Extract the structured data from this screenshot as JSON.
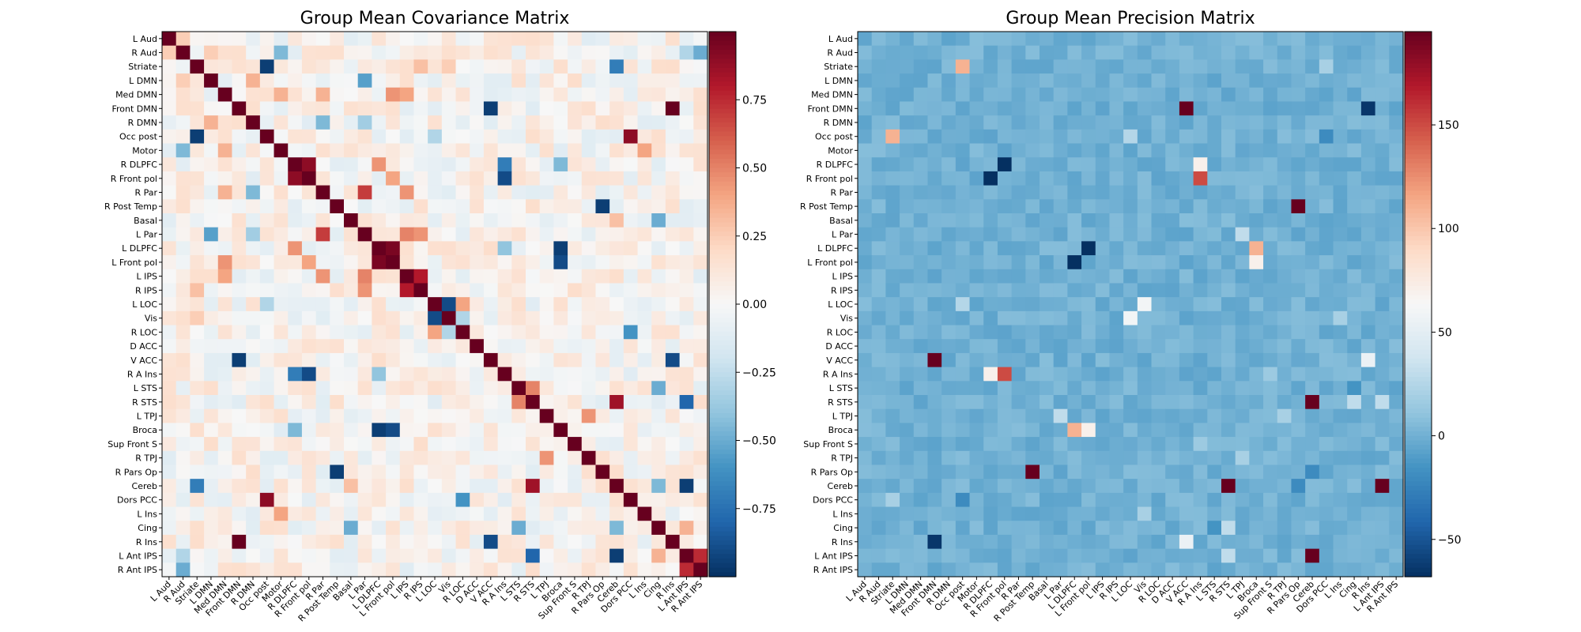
{
  "chart_data": [
    {
      "type": "heatmap",
      "title": "Group Mean Covariance Matrix",
      "colormap": "RdBu_r",
      "vmin": -1.0,
      "vmax": 1.0,
      "colorbar_ticks": [
        "0.75",
        "0.50",
        "0.25",
        "0.00",
        "−0.25",
        "−0.50",
        "−0.75"
      ],
      "colorbar_tick_values": [
        0.75,
        0.5,
        0.25,
        0.0,
        -0.25,
        -0.5,
        -0.75
      ],
      "cells": [
        {
          "x": 0,
          "y": 0,
          "v": 1.0
        },
        {
          "x": 1,
          "y": 1,
          "v": 1.0
        },
        {
          "x": 2,
          "y": 2,
          "v": 1.0
        },
        {
          "x": 3,
          "y": 3,
          "v": 1.0
        },
        {
          "x": 4,
          "y": 4,
          "v": 1.0
        },
        {
          "x": 5,
          "y": 5,
          "v": 1.0
        },
        {
          "x": 6,
          "y": 6,
          "v": 1.0
        },
        {
          "x": 7,
          "y": 7,
          "v": 1.0
        },
        {
          "x": 8,
          "y": 8,
          "v": 1.0
        },
        {
          "x": 9,
          "y": 9,
          "v": 1.0
        },
        {
          "x": 10,
          "y": 10,
          "v": 1.0
        },
        {
          "x": 11,
          "y": 11,
          "v": 1.0
        },
        {
          "x": 12,
          "y": 12,
          "v": 1.0
        },
        {
          "x": 13,
          "y": 13,
          "v": 1.0
        },
        {
          "x": 14,
          "y": 14,
          "v": 1.0
        },
        {
          "x": 15,
          "y": 15,
          "v": 1.0
        },
        {
          "x": 16,
          "y": 16,
          "v": 1.0
        },
        {
          "x": 17,
          "y": 17,
          "v": 1.0
        },
        {
          "x": 18,
          "y": 18,
          "v": 1.0
        },
        {
          "x": 19,
          "y": 19,
          "v": 1.0
        },
        {
          "x": 20,
          "y": 20,
          "v": 1.0
        },
        {
          "x": 21,
          "y": 21,
          "v": 1.0
        },
        {
          "x": 22,
          "y": 22,
          "v": 1.0
        },
        {
          "x": 23,
          "y": 23,
          "v": 1.0
        },
        {
          "x": 24,
          "y": 24,
          "v": 1.0
        },
        {
          "x": 25,
          "y": 25,
          "v": 1.0
        },
        {
          "x": 26,
          "y": 26,
          "v": 1.0
        },
        {
          "x": 27,
          "y": 27,
          "v": 1.0
        },
        {
          "x": 28,
          "y": 28,
          "v": 1.0
        },
        {
          "x": 29,
          "y": 29,
          "v": 1.0
        },
        {
          "x": 30,
          "y": 30,
          "v": 1.0
        },
        {
          "x": 31,
          "y": 31,
          "v": 1.0
        },
        {
          "x": 32,
          "y": 32,
          "v": 1.0
        },
        {
          "x": 33,
          "y": 33,
          "v": 1.0
        },
        {
          "x": 34,
          "y": 34,
          "v": 1.0
        },
        {
          "x": 35,
          "y": 35,
          "v": 1.0
        },
        {
          "x": 36,
          "y": 36,
          "v": 1.0
        },
        {
          "x": 37,
          "y": 37,
          "v": 1.0
        },
        {
          "x": 38,
          "y": 38,
          "v": 1.0
        },
        {
          "x": 0,
          "y": 1,
          "v": 0.25
        },
        {
          "x": 1,
          "y": 0,
          "v": 0.25
        },
        {
          "x": 1,
          "y": 38,
          "v": -0.5
        },
        {
          "x": 38,
          "y": 1,
          "v": -0.5
        },
        {
          "x": 1,
          "y": 37,
          "v": -0.3
        },
        {
          "x": 37,
          "y": 1,
          "v": -0.3
        },
        {
          "x": 1,
          "y": 8,
          "v": -0.45
        },
        {
          "x": 8,
          "y": 1,
          "v": -0.45
        },
        {
          "x": 1,
          "y": 3,
          "v": 0.25
        },
        {
          "x": 3,
          "y": 1,
          "v": 0.25
        },
        {
          "x": 2,
          "y": 7,
          "v": -0.95
        },
        {
          "x": 7,
          "y": 2,
          "v": -0.95
        },
        {
          "x": 2,
          "y": 32,
          "v": -0.7
        },
        {
          "x": 32,
          "y": 2,
          "v": -0.7
        },
        {
          "x": 2,
          "y": 18,
          "v": 0.3
        },
        {
          "x": 18,
          "y": 2,
          "v": 0.3
        },
        {
          "x": 2,
          "y": 20,
          "v": 0.25
        },
        {
          "x": 20,
          "y": 2,
          "v": 0.25
        },
        {
          "x": 3,
          "y": 14,
          "v": -0.55
        },
        {
          "x": 14,
          "y": 3,
          "v": -0.55
        },
        {
          "x": 3,
          "y": 6,
          "v": 0.35
        },
        {
          "x": 6,
          "y": 3,
          "v": 0.35
        },
        {
          "x": 4,
          "y": 8,
          "v": 0.35
        },
        {
          "x": 8,
          "y": 4,
          "v": 0.35
        },
        {
          "x": 4,
          "y": 16,
          "v": 0.45
        },
        {
          "x": 16,
          "y": 4,
          "v": 0.45
        },
        {
          "x": 4,
          "y": 17,
          "v": 0.4
        },
        {
          "x": 17,
          "y": 4,
          "v": 0.4
        },
        {
          "x": 4,
          "y": 11,
          "v": 0.35
        },
        {
          "x": 11,
          "y": 4,
          "v": 0.35
        },
        {
          "x": 5,
          "y": 23,
          "v": -0.95
        },
        {
          "x": 23,
          "y": 5,
          "v": -0.95
        },
        {
          "x": 5,
          "y": 36,
          "v": 1.0
        },
        {
          "x": 36,
          "y": 5,
          "v": 1.0
        },
        {
          "x": 6,
          "y": 11,
          "v": -0.45
        },
        {
          "x": 11,
          "y": 6,
          "v": -0.45
        },
        {
          "x": 6,
          "y": 14,
          "v": -0.35
        },
        {
          "x": 14,
          "y": 6,
          "v": -0.35
        },
        {
          "x": 7,
          "y": 33,
          "v": 0.9
        },
        {
          "x": 33,
          "y": 7,
          "v": 0.9
        },
        {
          "x": 7,
          "y": 19,
          "v": -0.3
        },
        {
          "x": 19,
          "y": 7,
          "v": -0.3
        },
        {
          "x": 8,
          "y": 34,
          "v": 0.4
        },
        {
          "x": 34,
          "y": 8,
          "v": 0.4
        },
        {
          "x": 9,
          "y": 10,
          "v": 0.9
        },
        {
          "x": 10,
          "y": 9,
          "v": 0.9
        },
        {
          "x": 9,
          "y": 24,
          "v": -0.7
        },
        {
          "x": 24,
          "y": 9,
          "v": -0.7
        },
        {
          "x": 10,
          "y": 24,
          "v": -0.9
        },
        {
          "x": 24,
          "y": 10,
          "v": -0.9
        },
        {
          "x": 9,
          "y": 15,
          "v": 0.45
        },
        {
          "x": 15,
          "y": 9,
          "v": 0.45
        },
        {
          "x": 10,
          "y": 16,
          "v": 0.4
        },
        {
          "x": 16,
          "y": 10,
          "v": 0.4
        },
        {
          "x": 9,
          "y": 28,
          "v": -0.45
        },
        {
          "x": 28,
          "y": 9,
          "v": -0.45
        },
        {
          "x": 11,
          "y": 14,
          "v": 0.7
        },
        {
          "x": 14,
          "y": 11,
          "v": 0.7
        },
        {
          "x": 11,
          "y": 17,
          "v": 0.45
        },
        {
          "x": 17,
          "y": 11,
          "v": 0.45
        },
        {
          "x": 12,
          "y": 31,
          "v": -0.95
        },
        {
          "x": 31,
          "y": 12,
          "v": -0.95
        },
        {
          "x": 13,
          "y": 32,
          "v": 0.3
        },
        {
          "x": 32,
          "y": 13,
          "v": 0.3
        },
        {
          "x": 13,
          "y": 35,
          "v": -0.5
        },
        {
          "x": 35,
          "y": 13,
          "v": -0.5
        },
        {
          "x": 14,
          "y": 17,
          "v": 0.5
        },
        {
          "x": 17,
          "y": 14,
          "v": 0.5
        },
        {
          "x": 14,
          "y": 18,
          "v": 0.45
        },
        {
          "x": 18,
          "y": 14,
          "v": 0.45
        },
        {
          "x": 15,
          "y": 16,
          "v": 0.95
        },
        {
          "x": 16,
          "y": 15,
          "v": 0.95
        },
        {
          "x": 15,
          "y": 28,
          "v": -0.95
        },
        {
          "x": 28,
          "y": 15,
          "v": -0.95
        },
        {
          "x": 16,
          "y": 28,
          "v": -0.9
        },
        {
          "x": 28,
          "y": 16,
          "v": -0.9
        },
        {
          "x": 15,
          "y": 24,
          "v": -0.4
        },
        {
          "x": 24,
          "y": 15,
          "v": -0.4
        },
        {
          "x": 17,
          "y": 18,
          "v": 0.8
        },
        {
          "x": 18,
          "y": 17,
          "v": 0.8
        },
        {
          "x": 19,
          "y": 20,
          "v": -0.9
        },
        {
          "x": 20,
          "y": 19,
          "v": -0.9
        },
        {
          "x": 19,
          "y": 21,
          "v": 0.4
        },
        {
          "x": 21,
          "y": 19,
          "v": 0.4
        },
        {
          "x": 20,
          "y": 21,
          "v": -0.3
        },
        {
          "x": 21,
          "y": 20,
          "v": -0.3
        },
        {
          "x": 21,
          "y": 33,
          "v": -0.6
        },
        {
          "x": 33,
          "y": 21,
          "v": -0.6
        },
        {
          "x": 23,
          "y": 36,
          "v": -0.9
        },
        {
          "x": 36,
          "y": 23,
          "v": -0.9
        },
        {
          "x": 25,
          "y": 26,
          "v": 0.5
        },
        {
          "x": 26,
          "y": 25,
          "v": 0.5
        },
        {
          "x": 25,
          "y": 35,
          "v": -0.5
        },
        {
          "x": 35,
          "y": 25,
          "v": -0.5
        },
        {
          "x": 26,
          "y": 32,
          "v": 0.85
        },
        {
          "x": 32,
          "y": 26,
          "v": 0.85
        },
        {
          "x": 26,
          "y": 37,
          "v": -0.8
        },
        {
          "x": 37,
          "y": 26,
          "v": -0.8
        },
        {
          "x": 27,
          "y": 30,
          "v": 0.45
        },
        {
          "x": 30,
          "y": 27,
          "v": 0.45
        },
        {
          "x": 32,
          "y": 37,
          "v": -0.95
        },
        {
          "x": 37,
          "y": 32,
          "v": -0.95
        },
        {
          "x": 32,
          "y": 35,
          "v": -0.45
        },
        {
          "x": 35,
          "y": 32,
          "v": -0.45
        },
        {
          "x": 37,
          "y": 38,
          "v": 0.75
        },
        {
          "x": 38,
          "y": 37,
          "v": 0.75
        },
        {
          "x": 35,
          "y": 37,
          "v": 0.35
        },
        {
          "x": 37,
          "y": 35,
          "v": 0.35
        }
      ]
    },
    {
      "type": "heatmap",
      "title": "Group Mean Precision Matrix",
      "colormap": "RdBu_r",
      "vmin": -68,
      "vmax": 195,
      "background_value": 0,
      "colorbar_ticks": [
        "150",
        "100",
        "50",
        "0",
        "−50"
      ],
      "colorbar_tick_values": [
        150,
        100,
        50,
        0,
        -50
      ],
      "cells": [
        {
          "x": 7,
          "y": 2,
          "v": 110
        },
        {
          "x": 2,
          "y": 7,
          "v": 110
        },
        {
          "x": 5,
          "y": 23,
          "v": 195
        },
        {
          "x": 23,
          "y": 5,
          "v": 195
        },
        {
          "x": 5,
          "y": 36,
          "v": -65
        },
        {
          "x": 36,
          "y": 5,
          "v": -65
        },
        {
          "x": 9,
          "y": 10,
          "v": -68
        },
        {
          "x": 10,
          "y": 9,
          "v": -68
        },
        {
          "x": 9,
          "y": 24,
          "v": 70
        },
        {
          "x": 24,
          "y": 9,
          "v": 70
        },
        {
          "x": 10,
          "y": 24,
          "v": 150
        },
        {
          "x": 24,
          "y": 10,
          "v": 150
        },
        {
          "x": 12,
          "y": 31,
          "v": 195
        },
        {
          "x": 31,
          "y": 12,
          "v": 195
        },
        {
          "x": 15,
          "y": 16,
          "v": -68
        },
        {
          "x": 16,
          "y": 15,
          "v": -68
        },
        {
          "x": 15,
          "y": 28,
          "v": 110
        },
        {
          "x": 28,
          "y": 15,
          "v": 110
        },
        {
          "x": 16,
          "y": 28,
          "v": 70
        },
        {
          "x": 28,
          "y": 16,
          "v": 70
        },
        {
          "x": 19,
          "y": 20,
          "v": 60
        },
        {
          "x": 20,
          "y": 19,
          "v": 60
        },
        {
          "x": 23,
          "y": 36,
          "v": 55
        },
        {
          "x": 36,
          "y": 23,
          "v": 55
        },
        {
          "x": 26,
          "y": 32,
          "v": 195
        },
        {
          "x": 32,
          "y": 26,
          "v": 195
        },
        {
          "x": 32,
          "y": 37,
          "v": 195
        },
        {
          "x": 37,
          "y": 32,
          "v": 195
        },
        {
          "x": 26,
          "y": 37,
          "v": 30
        },
        {
          "x": 37,
          "y": 26,
          "v": 30
        },
        {
          "x": 7,
          "y": 33,
          "v": -20
        },
        {
          "x": 33,
          "y": 7,
          "v": -20
        },
        {
          "x": 2,
          "y": 33,
          "v": 20
        },
        {
          "x": 33,
          "y": 2,
          "v": 20
        },
        {
          "x": 31,
          "y": 32,
          "v": -20
        },
        {
          "x": 32,
          "y": 31,
          "v": -20
        },
        {
          "x": 26,
          "y": 35,
          "v": 30
        },
        {
          "x": 35,
          "y": 26,
          "v": 30
        },
        {
          "x": 14,
          "y": 27,
          "v": 30
        },
        {
          "x": 27,
          "y": 14,
          "v": 30
        },
        {
          "x": 35,
          "y": 25,
          "v": -15
        },
        {
          "x": 25,
          "y": 35,
          "v": -15
        },
        {
          "x": 19,
          "y": 7,
          "v": 25
        },
        {
          "x": 7,
          "y": 19,
          "v": 25
        },
        {
          "x": 27,
          "y": 30,
          "v": 20
        },
        {
          "x": 30,
          "y": 27,
          "v": 20
        },
        {
          "x": 20,
          "y": 34,
          "v": 20
        },
        {
          "x": 34,
          "y": 20,
          "v": 20
        },
        {
          "x": 29,
          "y": 24,
          "v": 15
        },
        {
          "x": 24,
          "y": 29,
          "v": 15
        }
      ]
    }
  ],
  "labels": [
    "L Aud",
    "R Aud",
    "Striate",
    "L DMN",
    "Med DMN",
    "Front DMN",
    "R DMN",
    "Occ post",
    "Motor",
    "R DLPFC",
    "R Front pol",
    "R Par",
    "R Post Temp",
    "Basal",
    "L Par",
    "L DLPFC",
    "L Front pol",
    "L IPS",
    "R IPS",
    "L LOC",
    "Vis",
    "R LOC",
    "D ACC",
    "V ACC",
    "R A Ins",
    "L STS",
    "R STS",
    "L TPJ",
    "Broca",
    "Sup Front S",
    "R TPJ",
    "R Pars Op",
    "Cereb",
    "Dors PCC",
    "L Ins",
    "Cing",
    "R Ins",
    "L Ant IPS",
    "R Ant IPS"
  ]
}
